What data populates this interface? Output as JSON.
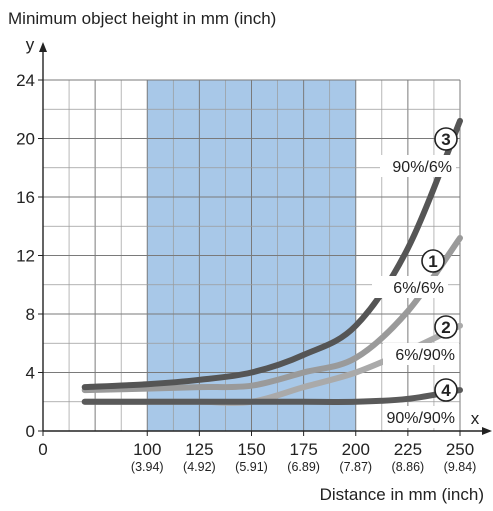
{
  "chart_data": {
    "type": "line",
    "title": "Minimum object height in mm (inch)",
    "xlabel": "Distance in mm (inch)",
    "ylabel": "",
    "x_axis_letter": "x",
    "y_axis_letter": "y",
    "xlim": [
      50,
      250
    ],
    "ylim": [
      0,
      24
    ],
    "grid": true,
    "x_ticks": [
      {
        "value": 50,
        "label": "0",
        "sub": ""
      },
      {
        "value": 100,
        "label": "100",
        "sub": "(3.94)"
      },
      {
        "value": 125,
        "label": "125",
        "sub": "(4.92)"
      },
      {
        "value": 150,
        "label": "150",
        "sub": "(5.91)"
      },
      {
        "value": 175,
        "label": "175",
        "sub": "(6.89)"
      },
      {
        "value": 200,
        "label": "200",
        "sub": "(7.87)"
      },
      {
        "value": 225,
        "label": "225",
        "sub": "(8.86)"
      },
      {
        "value": 250,
        "label": "250",
        "sub": "(9.84)"
      }
    ],
    "y_ticks": [
      {
        "value": 0,
        "label": "0"
      },
      {
        "value": 4,
        "label": "4"
      },
      {
        "value": 8,
        "label": "8"
      },
      {
        "value": 12,
        "label": "12"
      },
      {
        "value": 16,
        "label": "16"
      },
      {
        "value": 20,
        "label": "20"
      },
      {
        "value": 24,
        "label": "24"
      }
    ],
    "highlight_range": {
      "x0": 100,
      "x1": 200,
      "color": "#a8c8e8"
    },
    "series": [
      {
        "marker": "3",
        "name": "90%/6%",
        "color": "#555555",
        "x": [
          70,
          100,
          125,
          150,
          175,
          200,
          225,
          250
        ],
        "y": [
          3.0,
          3.2,
          3.5,
          4.0,
          5.2,
          7.2,
          12.5,
          21.2
        ]
      },
      {
        "marker": "1",
        "name": "6%/6%",
        "color": "#9a9a9a",
        "x": [
          70,
          100,
          125,
          150,
          175,
          200,
          225,
          250
        ],
        "y": [
          2.8,
          2.9,
          3.0,
          3.1,
          4.0,
          5.0,
          8.2,
          13.2
        ]
      },
      {
        "marker": "2",
        "name": "6%/90%",
        "color": "#aaaaaa",
        "x": [
          70,
          100,
          125,
          150,
          175,
          200,
          225,
          250
        ],
        "y": [
          2.0,
          2.0,
          2.0,
          2.0,
          3.0,
          4.0,
          5.5,
          7.2
        ]
      },
      {
        "marker": "4",
        "name": "90%/90%",
        "color": "#5a5a5a",
        "x": [
          70,
          100,
          125,
          150,
          175,
          200,
          225,
          250
        ],
        "y": [
          2.0,
          2.0,
          2.0,
          2.0,
          2.0,
          2.0,
          2.2,
          2.8
        ]
      }
    ]
  }
}
